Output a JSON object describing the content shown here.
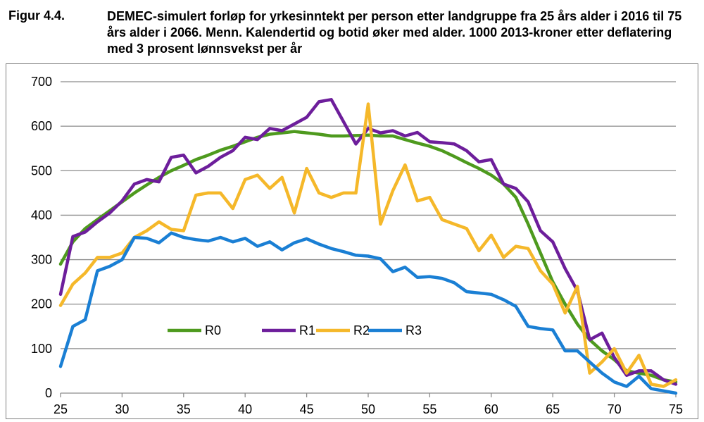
{
  "figure": {
    "label": "Figur 4.4.",
    "title": "DEMEC-simulert forløp for yrkesinntekt per person etter landgruppe fra 25 års alder i 2016 til 75 års alder i 2066. Menn. Kalendertid og botid øker med alder. 1000 2013-kroner etter deflatering med 3 prosent lønnsvekst per år"
  },
  "chart_data": {
    "type": "line",
    "title": "",
    "xlabel": "",
    "ylabel": "",
    "xlim": [
      25,
      75
    ],
    "ylim": [
      0,
      700
    ],
    "xticks": [
      25,
      30,
      35,
      40,
      45,
      50,
      55,
      60,
      65,
      70,
      75
    ],
    "yticks": [
      0,
      100,
      200,
      300,
      400,
      500,
      600,
      700
    ],
    "grid": "horizontal",
    "legend_position": "inside-bottom-left",
    "x": [
      25,
      26,
      27,
      28,
      29,
      30,
      31,
      32,
      33,
      34,
      35,
      36,
      37,
      38,
      39,
      40,
      41,
      42,
      43,
      44,
      45,
      46,
      47,
      48,
      49,
      50,
      51,
      52,
      53,
      54,
      55,
      56,
      57,
      58,
      59,
      60,
      61,
      62,
      63,
      64,
      65,
      66,
      67,
      68,
      69,
      70,
      71,
      72,
      73,
      74,
      75
    ],
    "series": [
      {
        "name": "R0",
        "color": "#4e9a1e",
        "values": [
          290,
          340,
          370,
          390,
          410,
          430,
          450,
          468,
          485,
          500,
          512,
          525,
          535,
          546,
          555,
          565,
          575,
          582,
          585,
          588,
          585,
          582,
          578,
          578,
          579,
          580,
          578,
          578,
          570,
          562,
          555,
          545,
          532,
          518,
          505,
          490,
          470,
          440,
          380,
          315,
          250,
          200,
          155,
          120,
          95,
          75,
          50,
          45,
          40,
          30,
          25
        ]
      },
      {
        "name": "R1",
        "color": "#6d1e9b",
        "values": [
          222,
          352,
          362,
          385,
          405,
          432,
          470,
          480,
          475,
          530,
          535,
          495,
          510,
          530,
          545,
          575,
          570,
          595,
          590,
          605,
          620,
          655,
          660,
          610,
          560,
          595,
          585,
          590,
          578,
          586,
          565,
          563,
          560,
          545,
          520,
          525,
          470,
          460,
          430,
          365,
          340,
          280,
          230,
          120,
          135,
          80,
          40,
          50,
          50,
          30,
          20
        ]
      },
      {
        "name": "R2",
        "color": "#f5b82a",
        "values": [
          197,
          245,
          270,
          305,
          305,
          315,
          350,
          365,
          385,
          368,
          365,
          445,
          450,
          450,
          415,
          480,
          490,
          460,
          485,
          405,
          505,
          450,
          440,
          450,
          450,
          650,
          380,
          455,
          513,
          432,
          440,
          390,
          380,
          370,
          320,
          355,
          305,
          330,
          325,
          275,
          245,
          180,
          240,
          45,
          70,
          100,
          45,
          85,
          20,
          15,
          30
        ]
      },
      {
        "name": "R3",
        "color": "#1a7fd4",
        "values": [
          60,
          150,
          165,
          275,
          285,
          300,
          350,
          348,
          338,
          360,
          350,
          345,
          342,
          350,
          340,
          348,
          330,
          340,
          322,
          338,
          347,
          335,
          325,
          318,
          310,
          308,
          302,
          273,
          283,
          260,
          262,
          258,
          248,
          228,
          225,
          222,
          210,
          195,
          150,
          145,
          142,
          95,
          95,
          70,
          45,
          25,
          15,
          38,
          10,
          5,
          0
        ]
      }
    ]
  }
}
